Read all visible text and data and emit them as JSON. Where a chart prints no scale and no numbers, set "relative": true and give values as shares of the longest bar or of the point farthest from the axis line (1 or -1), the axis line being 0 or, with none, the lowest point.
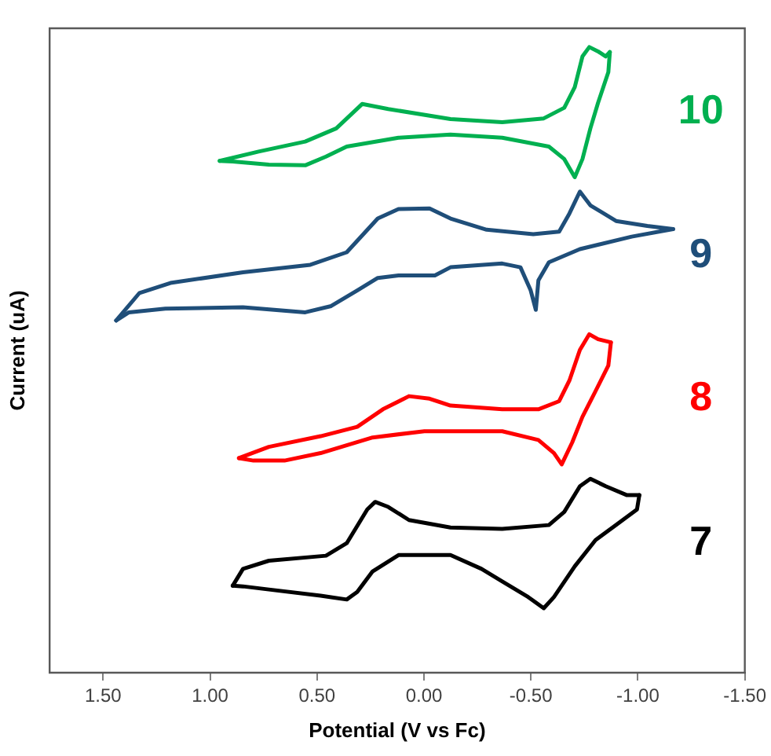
{
  "chart_data": {
    "type": "line",
    "xlabel": "Potential (V vs Fc)",
    "ylabel": "Current (uA)",
    "relative": true,
    "legend": false,
    "grid": false,
    "marker": "none",
    "line_style": "solid",
    "xlim": [
      1.75,
      -1.5
    ],
    "xticks": [
      {
        "value": 1.5,
        "label": "1.50"
      },
      {
        "value": 1,
        "label": "1.00"
      },
      {
        "value": 0.5,
        "label": "0.50"
      },
      {
        "value": 0,
        "label": "0.00"
      },
      {
        "value": -0.5,
        "label": "-0.50"
      },
      {
        "value": -1,
        "label": "-1.00"
      },
      {
        "value": -1.5,
        "label": "-1.50"
      }
    ],
    "series": [
      {
        "name": "10",
        "color": "#00b050",
        "x": [
          0.955,
          0.773,
          0.555,
          0.41,
          0.289,
          0.167,
          -0.124,
          -0.366,
          -0.56,
          -0.656,
          -0.705,
          -0.741,
          -0.773,
          -0.814,
          -0.85,
          -0.869
        ],
        "values": [
          0.818,
          0.833,
          0.849,
          0.87,
          0.909,
          0.901,
          0.885,
          0.88,
          0.886,
          0.903,
          0.936,
          0.985,
          1,
          0.993,
          0.985,
          0.992
        ]
      },
      {
        "color": "#00b050",
        "x": [
          -0.869,
          -0.862,
          -0.814,
          -0.778,
          -0.741,
          -0.705,
          -0.656,
          -0.584,
          -0.366,
          -0.124,
          0.119,
          0.361,
          0.458,
          0.555,
          0.725,
          0.894,
          0.955
        ],
        "values": [
          0.992,
          0.96,
          0.911,
          0.87,
          0.821,
          0.792,
          0.821,
          0.841,
          0.855,
          0.86,
          0.855,
          0.841,
          0.825,
          0.811,
          0.812,
          0.817,
          0.818
        ]
      },
      {
        "name": "9",
        "color": "#1f4e79",
        "x": [
          1.439,
          1.33,
          1.185,
          0.846,
          0.531,
          0.361,
          0.216,
          0.119,
          -0.026,
          -0.124,
          -0.293,
          -0.511,
          -0.632,
          -0.68,
          -0.729,
          -0.778,
          -0.898,
          -1.044,
          -1.165
        ],
        "values": [
          0.563,
          0.607,
          0.623,
          0.64,
          0.652,
          0.672,
          0.726,
          0.741,
          0.742,
          0.726,
          0.708,
          0.701,
          0.705,
          0.734,
          0.769,
          0.747,
          0.722,
          0.714,
          0.709
        ]
      },
      {
        "color": "#1f4e79",
        "x": [
          -1.165,
          -0.971,
          -0.729,
          -0.584,
          -0.535,
          -0.523,
          -0.499,
          -0.451,
          -0.366,
          -0.124,
          -0.051,
          0.119,
          0.216,
          0.312,
          0.434,
          0.555,
          0.846,
          1.209,
          1.379,
          1.439
        ],
        "values": [
          0.709,
          0.697,
          0.677,
          0.656,
          0.627,
          0.58,
          0.611,
          0.648,
          0.654,
          0.648,
          0.635,
          0.635,
          0.631,
          0.611,
          0.586,
          0.576,
          0.584,
          0.582,
          0.576,
          0.563
        ]
      },
      {
        "name": "8",
        "color": "#ff0000",
        "x": [
          0.865,
          0.725,
          0.483,
          0.312,
          0.192,
          0.07,
          -0.026,
          -0.124,
          -0.366,
          -0.535,
          -0.632,
          -0.68,
          -0.729,
          -0.773,
          -0.814,
          -0.874
        ],
        "values": [
          0.343,
          0.361,
          0.378,
          0.393,
          0.421,
          0.442,
          0.438,
          0.427,
          0.421,
          0.421,
          0.434,
          0.467,
          0.516,
          0.541,
          0.533,
          0.528
        ]
      },
      {
        "color": "#ff0000",
        "x": [
          -0.874,
          -0.862,
          -0.802,
          -0.741,
          -0.693,
          -0.644,
          -0.608,
          -0.535,
          -0.366,
          -0.002,
          0.24,
          0.483,
          0.652,
          0.797,
          0.865
        ],
        "values": [
          0.528,
          0.491,
          0.45,
          0.409,
          0.368,
          0.333,
          0.351,
          0.372,
          0.386,
          0.386,
          0.376,
          0.351,
          0.339,
          0.339,
          0.343
        ]
      },
      {
        "name": "7",
        "color": "#000000",
        "x": [
          0.894,
          0.846,
          0.725,
          0.458,
          0.361,
          0.265,
          0.228,
          0.167,
          0.07,
          -0.124,
          -0.366,
          -0.584,
          -0.656,
          -0.729,
          -0.778,
          -0.85,
          -0.947,
          -1.007
        ],
        "values": [
          0.139,
          0.166,
          0.179,
          0.187,
          0.207,
          0.261,
          0.273,
          0.265,
          0.244,
          0.232,
          0.23,
          0.236,
          0.257,
          0.298,
          0.31,
          0.298,
          0.284,
          0.284
        ]
      },
      {
        "color": "#000000",
        "x": [
          -1.007,
          -0.996,
          -0.898,
          -0.802,
          -0.705,
          -0.608,
          -0.56,
          -0.487,
          -0.366,
          -0.269,
          -0.124,
          0.119,
          0.24,
          0.312,
          0.361,
          0.483,
          0.725,
          0.846,
          0.894
        ],
        "values": [
          0.284,
          0.261,
          0.236,
          0.212,
          0.17,
          0.121,
          0.103,
          0.121,
          0.146,
          0.166,
          0.188,
          0.188,
          0.162,
          0.129,
          0.117,
          0.123,
          0.133,
          0.138,
          0.139
        ]
      }
    ]
  }
}
